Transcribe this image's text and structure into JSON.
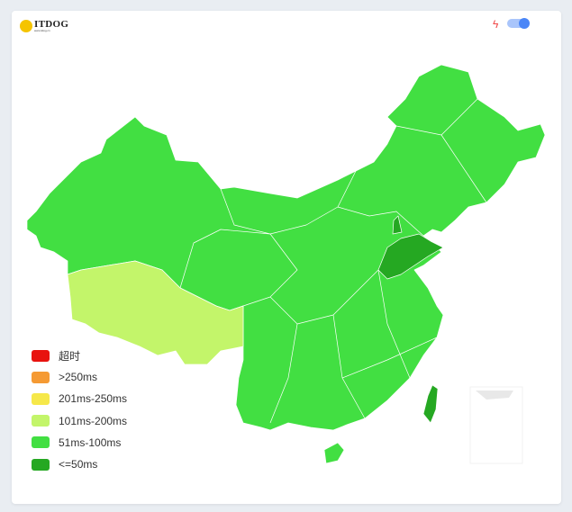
{
  "logo": {
    "name": "ITDOG",
    "url_text": "www.itdog.cn"
  },
  "toolbar": {
    "bolt_icon": "lightning-icon",
    "toggle_on": true,
    "toggle_color": "#4a86f7"
  },
  "legend": [
    {
      "label": "超时",
      "color": "#e8130f"
    },
    {
      "label": ">250ms",
      "color": "#f59a33"
    },
    {
      "label": "201ms-250ms",
      "color": "#f6e84a"
    },
    {
      "label": "101ms-200ms",
      "color": "#c3f56a"
    },
    {
      "label": "51ms-100ms",
      "color": "#42df42"
    },
    {
      "label": "<=50ms",
      "color": "#25a822"
    }
  ],
  "map": {
    "default_level": "51ms-100ms",
    "regions": [
      {
        "name": "西藏",
        "level": "101ms-200ms"
      },
      {
        "name": "山东",
        "level": "<=50ms"
      },
      {
        "name": "天津",
        "level": "<=50ms"
      },
      {
        "name": "台湾",
        "level": "<=50ms"
      }
    ]
  }
}
